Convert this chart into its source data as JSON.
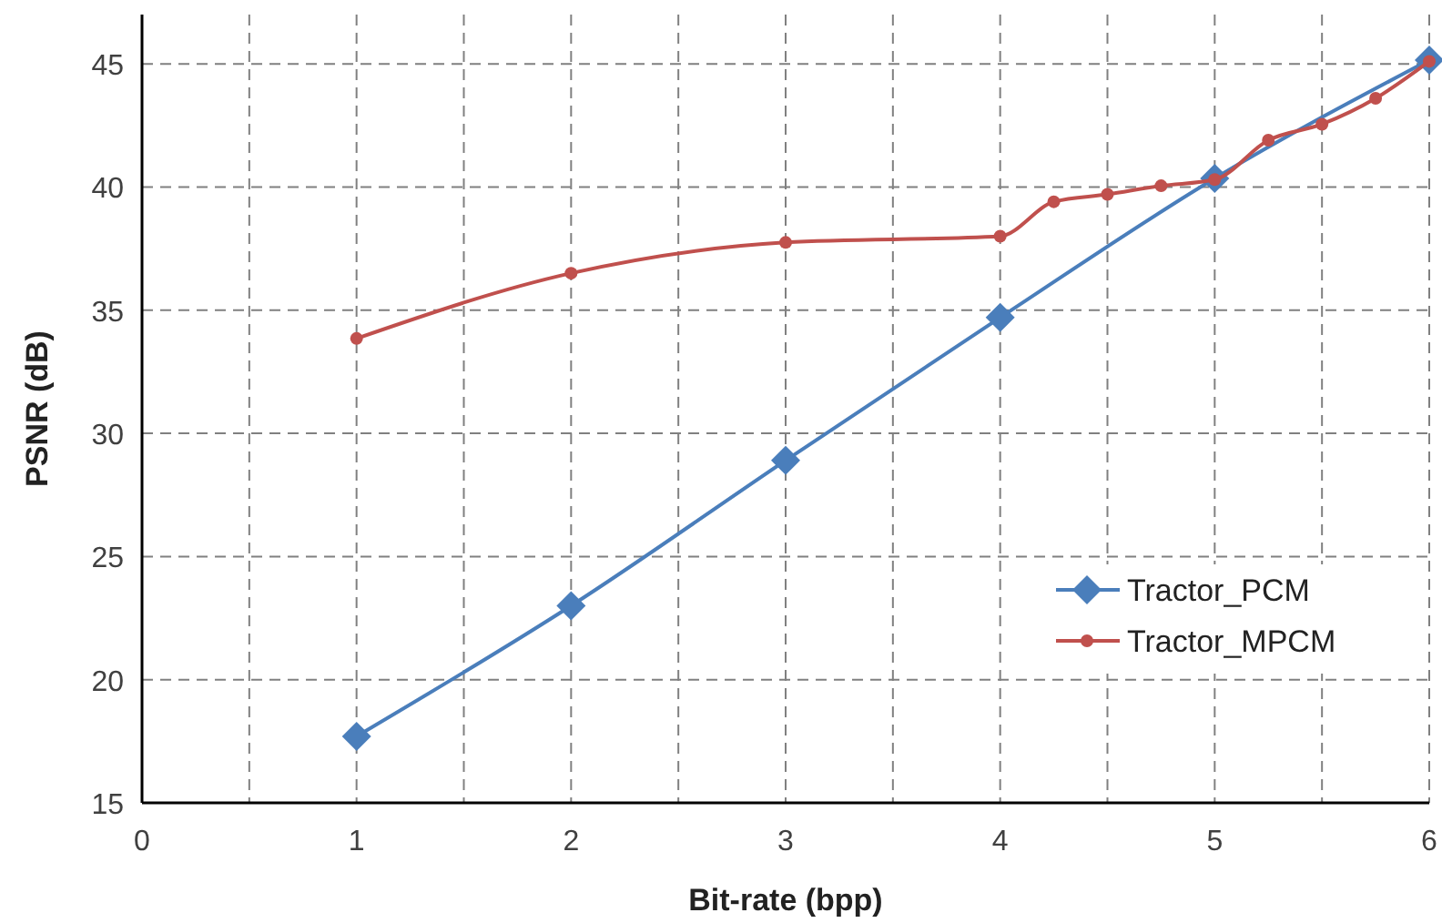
{
  "chart_data": {
    "type": "line",
    "xlabel": "Bit-rate (bpp)",
    "ylabel": "PSNR (dB)",
    "xlim": [
      0,
      6
    ],
    "xticks": [
      0,
      {
        "value": 0.5,
        "label": null
      },
      1,
      {
        "value": 1.5,
        "label": null
      },
      2,
      {
        "value": 2.5,
        "label": null
      },
      3,
      {
        "value": 3.5,
        "label": null
      },
      4,
      {
        "value": 4.5,
        "label": null
      },
      5,
      {
        "value": 5.5,
        "label": null
      },
      6
    ],
    "ylim": [
      15,
      47
    ],
    "yticks": [
      15,
      20,
      25,
      30,
      35,
      40,
      45
    ],
    "grid": true,
    "legend": "right",
    "line_style": "solid",
    "series": [
      {
        "name": "Tractor_PCM",
        "color": "#4a7ebb",
        "marker": "diamond",
        "x": [
          1,
          2,
          3,
          4,
          5,
          6
        ],
        "values": [
          17.7,
          23.0,
          28.9,
          34.7,
          40.35,
          45.15
        ]
      },
      {
        "name": "Tractor_MPCM",
        "color": "#c0504d",
        "marker": "circle",
        "x": [
          1,
          2,
          3,
          4,
          4.25,
          4.5,
          4.75,
          5,
          5.25,
          5.5,
          5.75,
          6
        ],
        "values": [
          33.85,
          36.5,
          37.75,
          38.0,
          39.4,
          39.7,
          40.05,
          40.3,
          41.9,
          42.55,
          43.6,
          45.1
        ]
      }
    ]
  }
}
